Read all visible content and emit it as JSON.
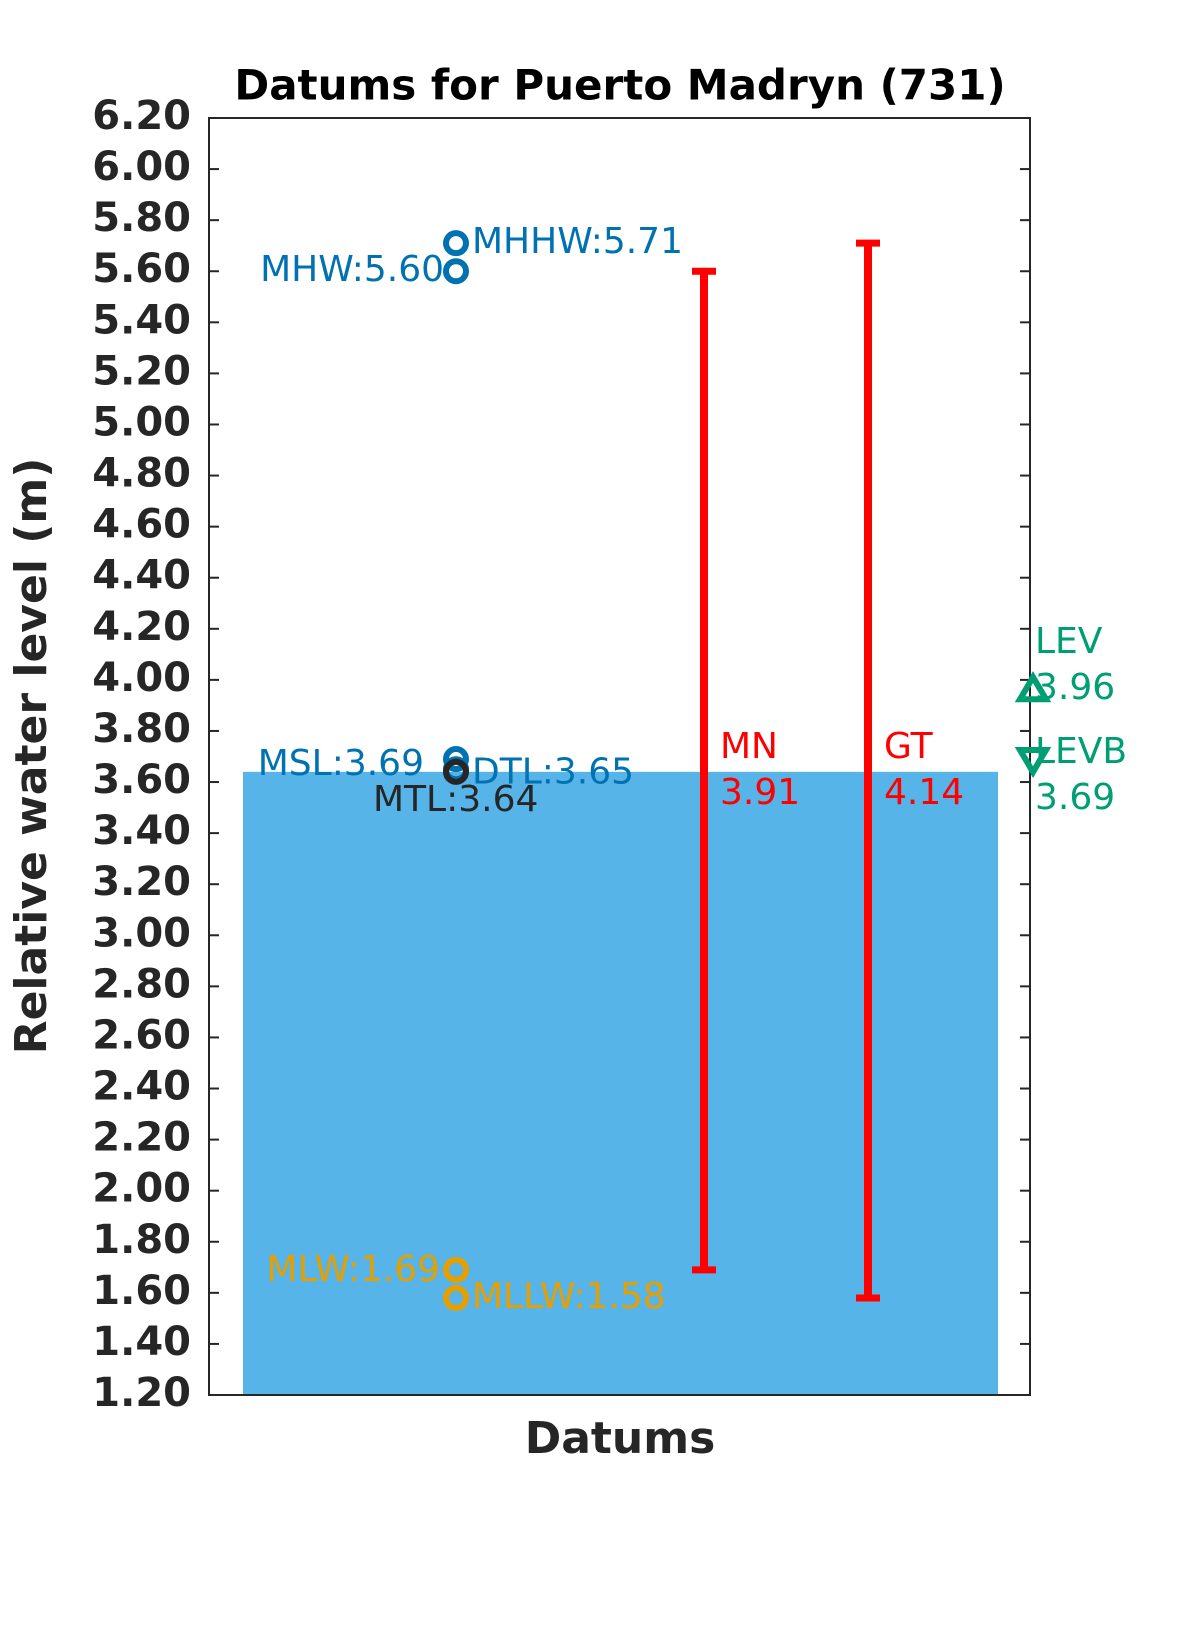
{
  "chart_data": {
    "type": "datums",
    "title": "Datums for Puerto Madryn (731)",
    "xlabel": "Datums",
    "ylabel": "Relative water level (m)",
    "ylim": [
      1.2,
      6.2
    ],
    "yticks": [
      {
        "value": 1.2,
        "label": "1.20"
      },
      {
        "value": 1.4,
        "label": "1.40"
      },
      {
        "value": 1.6,
        "label": "1.60"
      },
      {
        "value": 1.8,
        "label": "1.80"
      },
      {
        "value": 2.0,
        "label": "2.00"
      },
      {
        "value": 2.2,
        "label": "2.20"
      },
      {
        "value": 2.4,
        "label": "2.40"
      },
      {
        "value": 2.6,
        "label": "2.60"
      },
      {
        "value": 2.8,
        "label": "2.80"
      },
      {
        "value": 3.0,
        "label": "3.00"
      },
      {
        "value": 3.2,
        "label": "3.20"
      },
      {
        "value": 3.4,
        "label": "3.40"
      },
      {
        "value": 3.6,
        "label": "3.60"
      },
      {
        "value": 3.8,
        "label": "3.80"
      },
      {
        "value": 4.0,
        "label": "4.00"
      },
      {
        "value": 4.2,
        "label": "4.20"
      },
      {
        "value": 4.4,
        "label": "4.40"
      },
      {
        "value": 4.6,
        "label": "4.60"
      },
      {
        "value": 4.8,
        "label": "4.80"
      },
      {
        "value": 5.0,
        "label": "5.00"
      },
      {
        "value": 5.2,
        "label": "5.20"
      },
      {
        "value": 5.4,
        "label": "5.40"
      },
      {
        "value": 5.6,
        "label": "5.60"
      },
      {
        "value": 5.8,
        "label": "5.80"
      },
      {
        "value": 6.0,
        "label": "6.00"
      },
      {
        "value": 6.2,
        "label": "6.20"
      }
    ],
    "bar": {
      "value": 3.64,
      "color": "#56b4e9"
    },
    "points": [
      {
        "name": "MHHW",
        "value": 5.71,
        "label": "MHHW:5.71",
        "color": "#0072b2"
      },
      {
        "name": "MHW",
        "value": 5.6,
        "label": "MHW:5.60",
        "color": "#0072b2"
      },
      {
        "name": "MSL",
        "value": 3.69,
        "label": "MSL:3.69",
        "color": "#0072b2"
      },
      {
        "name": "DTL",
        "value": 3.65,
        "label": "DTL:3.65",
        "color": "#0072b2"
      },
      {
        "name": "MTL",
        "value": 3.64,
        "label": "MTL:3.64",
        "color": "#262626"
      },
      {
        "name": "MLW",
        "value": 1.69,
        "label": "MLW:1.69",
        "color": "#e69f00"
      },
      {
        "name": "MLLW",
        "value": 1.58,
        "label": "MLLW:1.58",
        "color": "#e69f00"
      }
    ],
    "ranges": [
      {
        "name": "MN",
        "low": 1.69,
        "high": 5.6,
        "value": 3.91,
        "color": "#ff0000"
      },
      {
        "name": "GT",
        "low": 1.58,
        "high": 5.71,
        "value": 4.14,
        "color": "#ff0000"
      }
    ],
    "extremes": [
      {
        "name": "LEV",
        "value": 3.96,
        "marker": "up",
        "color": "#009e73"
      },
      {
        "name": "LEVB",
        "value": 3.69,
        "marker": "down",
        "color": "#009e73"
      }
    ]
  }
}
